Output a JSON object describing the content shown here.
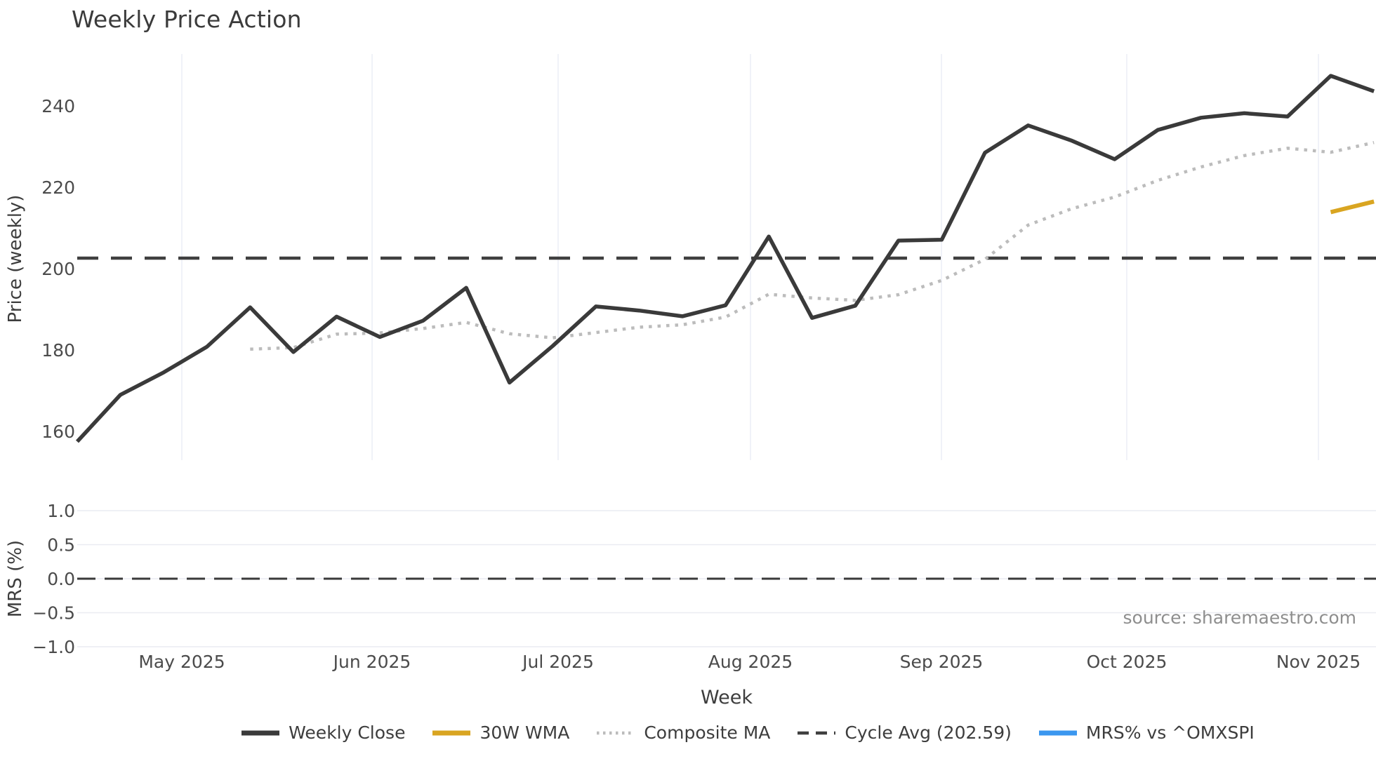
{
  "title": "Weekly Price Action",
  "source_note": "source: sharemaestro.com",
  "price_axis": {
    "label": "Price (weekly)",
    "tick_labels": [
      "240",
      "220",
      "200",
      "180",
      "160"
    ],
    "tick_values": [
      240,
      220,
      200,
      180,
      160
    ],
    "ylim": [
      152.9,
      252.6
    ]
  },
  "mrs_axis": {
    "label": "MRS (%)",
    "tick_labels": [
      "1.0",
      "0.5",
      "0.0",
      "−0.5",
      "−1.0"
    ],
    "tick_values": [
      1.0,
      0.5,
      0.0,
      -0.5,
      -1.0
    ],
    "ylim": [
      -1.15,
      1.15
    ]
  },
  "x_axis": {
    "label": "Week",
    "tick_labels": [
      "May 2025",
      "Jun 2025",
      "Jul 2025",
      "Aug 2025",
      "Sep 2025",
      "Oct 2025",
      "Nov 2025"
    ]
  },
  "legend": [
    {
      "label": "Weekly Close",
      "color": "#3a3a3a",
      "style": "solid"
    },
    {
      "label": "30W WMA",
      "color": "#d9a521",
      "style": "solid"
    },
    {
      "label": "Composite MA",
      "color": "#bcbcbc",
      "style": "dotted"
    },
    {
      "label": "Cycle Avg (202.59)",
      "color": "#3f3f3f",
      "style": "dashed"
    },
    {
      "label": "MRS% vs ^OMXSPI",
      "color": "#3b97ef",
      "style": "solid"
    }
  ],
  "chart_data": {
    "type": "line",
    "title": "Weekly Price Action",
    "xlabel": "Week",
    "panels": [
      {
        "name": "price",
        "ylabel": "Price (weekly)",
        "ylim": [
          152.9,
          252.6
        ],
        "grid": "vertical-months"
      },
      {
        "name": "mrs",
        "ylabel": "MRS (%)",
        "ylim": [
          -1.15,
          1.15
        ],
        "grid": "horizontal"
      }
    ],
    "x": [
      "2025-04-14",
      "2025-04-21",
      "2025-04-28",
      "2025-05-05",
      "2025-05-12",
      "2025-05-19",
      "2025-05-26",
      "2025-06-02",
      "2025-06-09",
      "2025-06-16",
      "2025-06-23",
      "2025-06-30",
      "2025-07-07",
      "2025-07-14",
      "2025-07-21",
      "2025-07-28",
      "2025-08-04",
      "2025-08-11",
      "2025-08-18",
      "2025-08-25",
      "2025-09-01",
      "2025-09-08",
      "2025-09-15",
      "2025-09-22",
      "2025-09-29",
      "2025-10-06",
      "2025-10-13",
      "2025-10-20",
      "2025-10-27",
      "2025-11-03",
      "2025-11-10"
    ],
    "series": [
      {
        "name": "Weekly Close",
        "panel": "price",
        "color": "#3a3a3a",
        "style": "solid",
        "values": [
          157.5,
          169.0,
          174.5,
          180.8,
          190.5,
          179.5,
          188.2,
          183.2,
          187.2,
          195.3,
          172.0,
          181.0,
          190.7,
          189.7,
          188.3,
          191.0,
          207.9,
          187.9,
          190.9,
          206.9,
          207.1,
          228.5,
          235.2,
          231.5,
          226.9,
          234.1,
          237.1,
          238.2,
          237.4,
          247.4,
          243.6
        ]
      },
      {
        "name": "Composite MA",
        "panel": "price",
        "color": "#bcbcbc",
        "style": "dotted",
        "values": [
          null,
          null,
          null,
          null,
          180.2,
          180.6,
          183.9,
          184.2,
          185.3,
          186.8,
          184.0,
          183.0,
          184.3,
          185.6,
          186.2,
          188.1,
          193.7,
          192.8,
          192.2,
          193.6,
          197.1,
          202.3,
          210.7,
          214.7,
          217.6,
          221.7,
          225.0,
          227.8,
          229.6,
          228.6,
          231.0
        ]
      },
      {
        "name": "30W WMA",
        "panel": "price",
        "color": "#d9a521",
        "style": "solid",
        "values": [
          null,
          null,
          null,
          null,
          null,
          null,
          null,
          null,
          null,
          null,
          null,
          null,
          null,
          null,
          null,
          null,
          null,
          null,
          null,
          null,
          null,
          null,
          null,
          null,
          null,
          null,
          null,
          null,
          null,
          213.9,
          216.5
        ]
      },
      {
        "name": "Cycle Avg (202.59)",
        "panel": "price",
        "color": "#3f3f3f",
        "style": "dashed",
        "constant": 202.59
      },
      {
        "name": "MRS% vs ^OMXSPI",
        "panel": "mrs",
        "color": "#3b97ef",
        "style": "solid",
        "zero_reference_dashed": 0.0
      }
    ],
    "legend_position": "bottom"
  }
}
